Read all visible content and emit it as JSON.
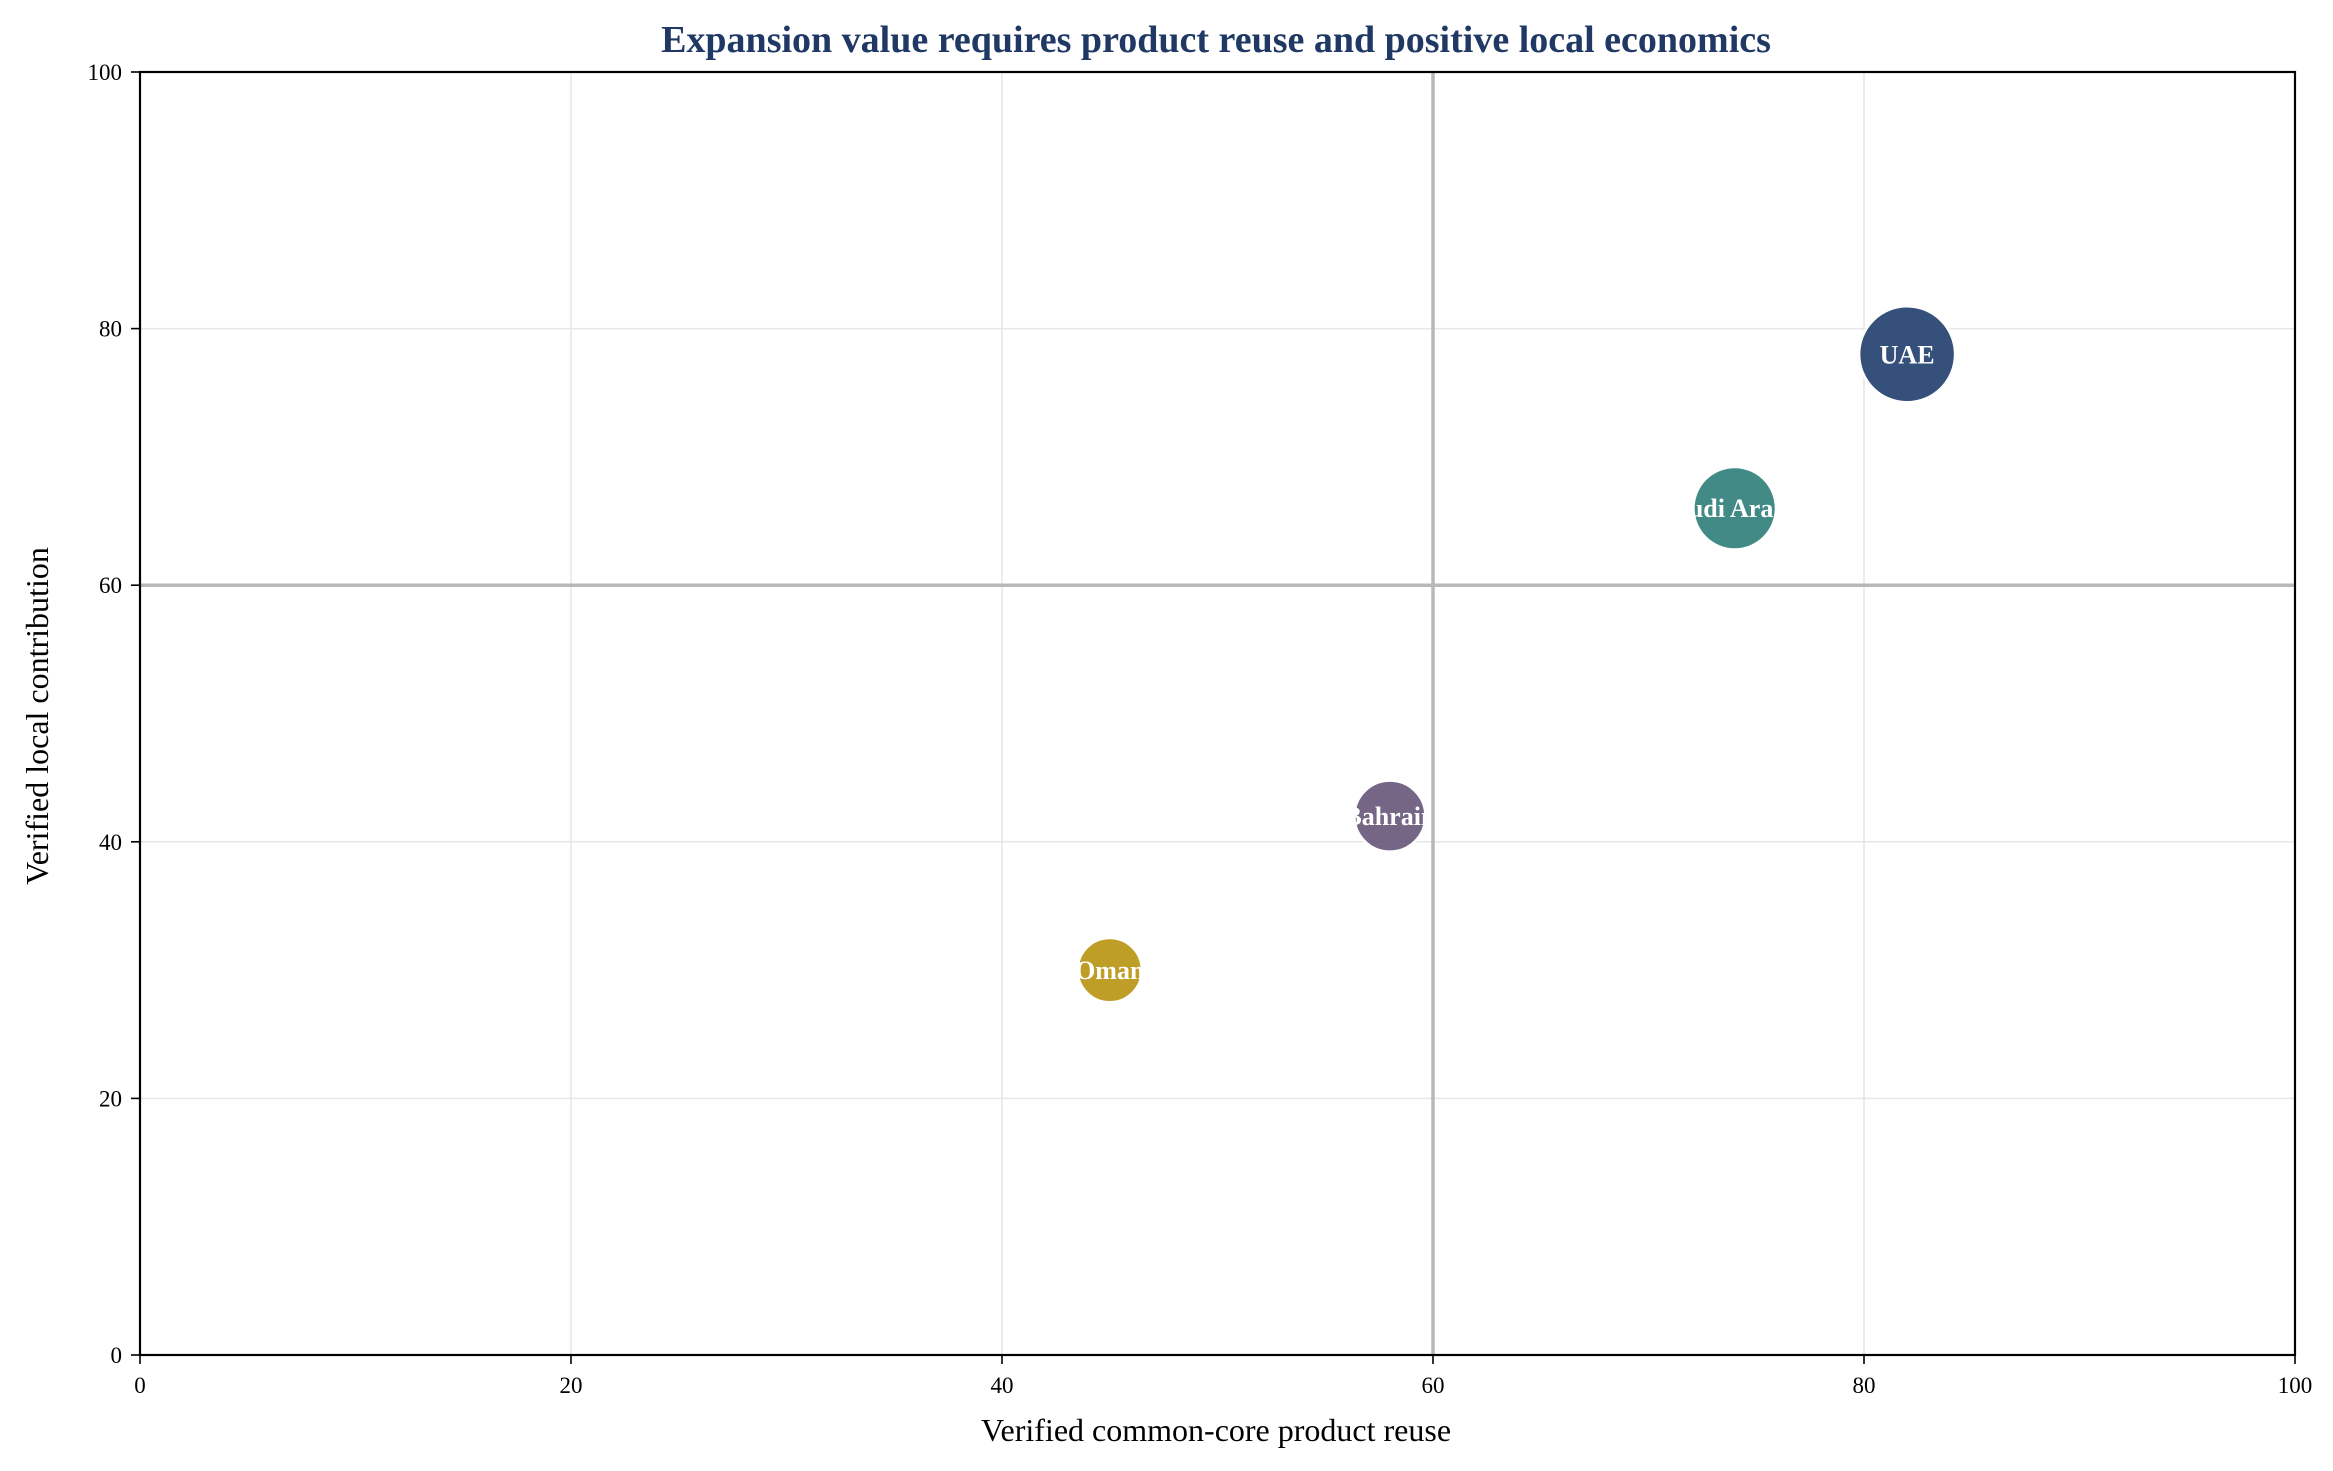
{
  "chart_data": {
    "type": "scatter",
    "title": "Expansion value requires product reuse and positive local economics",
    "xlabel": "Verified common-core product reuse",
    "ylabel": "Verified local contribution",
    "xlim": [
      0,
      100
    ],
    "ylim": [
      0,
      100
    ],
    "xticks": [
      "0",
      "20",
      "40",
      "60",
      "80",
      "100"
    ],
    "yticks": [
      "0",
      "20",
      "40",
      "60",
      "80",
      "100"
    ],
    "grid": true,
    "reference_lines": {
      "x": 60,
      "y": 60
    },
    "title_color": "#1f3864",
    "points": [
      {
        "label": "UAE",
        "x": 82,
        "y": 78,
        "size": 1.0,
        "color": "#1f3d6b"
      },
      {
        "label": "Saudi Arabia",
        "x": 74,
        "y": 66,
        "size": 0.86,
        "color": "#2e7d78"
      },
      {
        "label": "Bahrain",
        "x": 58,
        "y": 42,
        "size": 0.74,
        "color": "#655577"
      },
      {
        "label": "Oman",
        "x": 45,
        "y": 30,
        "size": 0.67,
        "color": "#b8930f"
      }
    ]
  }
}
